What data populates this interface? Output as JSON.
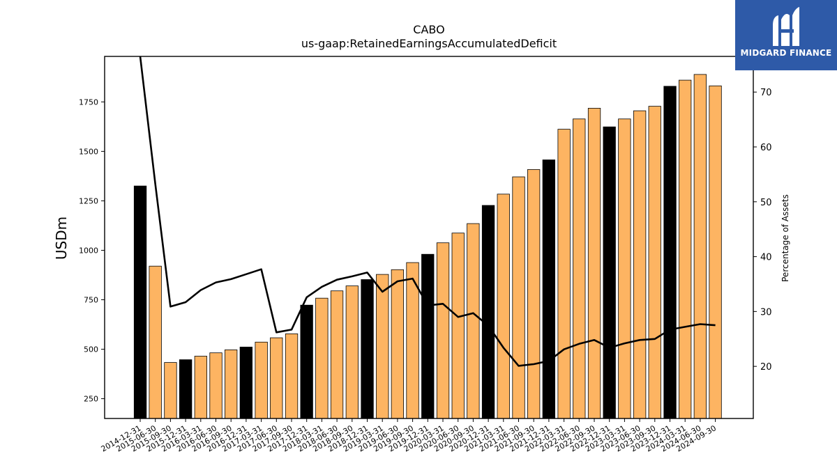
{
  "logo": {
    "text": "MIDGARD FINANCE",
    "icon": "midgard-logo-icon",
    "color": "#2e5aa8"
  },
  "chart_data": {
    "type": "bar",
    "title": "CABO",
    "subtitle": "us-gaap:RetainedEarningsAccumulatedDeficit",
    "ylabel": "USDm",
    "y2label": "Percentage of Assets",
    "ylim": [
      150,
      1980
    ],
    "y2lim": [
      10.5,
      76.5
    ],
    "yticks": [
      250,
      500,
      750,
      1000,
      1250,
      1500,
      1750
    ],
    "y2ticks": [
      20,
      30,
      40,
      50,
      60,
      70
    ],
    "colors": {
      "annual": "#000000",
      "quarterly": "#fdb462",
      "line": "#000000"
    },
    "categories": [
      "2014-12-31",
      "2015-06-30",
      "2015-09-30",
      "2015-12-31",
      "2016-03-31",
      "2016-06-30",
      "2016-09-30",
      "2016-12-31",
      "2017-03-31",
      "2017-06-30",
      "2017-09-30",
      "2017-12-31",
      "2018-03-31",
      "2018-06-30",
      "2018-09-30",
      "2018-12-31",
      "2019-03-31",
      "2019-06-30",
      "2019-09-30",
      "2019-12-31",
      "2020-03-31",
      "2020-06-30",
      "2020-09-30",
      "2020-12-31",
      "2021-03-31",
      "2021-06-30",
      "2021-09-30",
      "2021-12-31",
      "2022-03-31",
      "2022-06-30",
      "2022-09-30",
      "2022-12-31",
      "2023-03-31",
      "2023-06-30",
      "2023-09-30",
      "2023-12-31",
      "2024-03-31",
      "2024-06-30",
      "2024-09-30"
    ],
    "series": [
      {
        "values": [
          1325,
          920,
          433,
          447,
          465,
          482,
          497,
          511,
          536,
          558,
          578,
          723,
          758,
          795,
          820,
          852,
          878,
          902,
          938,
          980,
          1038,
          1087,
          1135,
          1227,
          1284,
          1371,
          1408,
          1457,
          1612,
          1664,
          1718,
          1624,
          1664,
          1705,
          1728,
          1829,
          1860,
          1889,
          1831
        ],
        "annual": [
          true,
          false,
          false,
          true,
          false,
          false,
          false,
          true,
          false,
          false,
          false,
          true,
          false,
          false,
          false,
          true,
          false,
          false,
          false,
          true,
          false,
          false,
          false,
          true,
          false,
          false,
          false,
          true,
          false,
          false,
          false,
          true,
          false,
          false,
          false,
          true,
          false,
          false,
          false
        ]
      },
      {
        "axis": "right",
        "values": [
          76.5,
          53.2,
          30.9,
          31.7,
          33.9,
          35.3,
          35.9,
          36.8,
          37.7,
          26.2,
          26.7,
          32.6,
          34.5,
          35.8,
          36.4,
          37.1,
          33.6,
          35.5,
          36.0,
          31.1,
          31.4,
          29.0,
          29.7,
          27.4,
          23.4,
          20.1,
          20.4,
          21.0,
          23.1,
          24.1,
          24.8,
          23.4,
          24.2,
          24.8,
          25.0,
          26.7,
          27.2,
          27.7,
          27.5
        ]
      }
    ]
  }
}
